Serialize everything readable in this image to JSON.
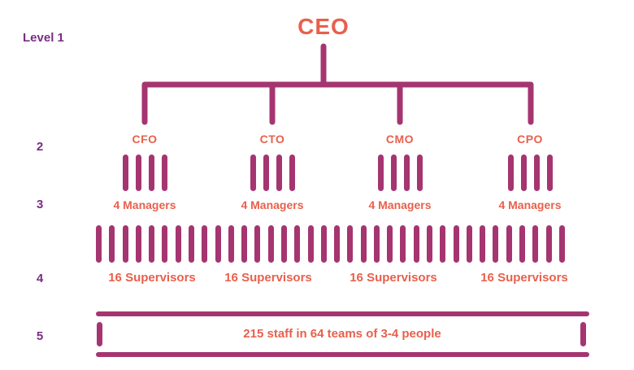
{
  "palette": {
    "line": "#A53570",
    "level_label": "#7B2C83",
    "node_text": "#E8604C",
    "background": "#ffffff"
  },
  "level_axis": {
    "items": [
      {
        "label": "Level 1"
      },
      {
        "label": "2"
      },
      {
        "label": "3"
      },
      {
        "label": "4"
      },
      {
        "label": "5"
      }
    ]
  },
  "org": {
    "root": {
      "title": "CEO"
    },
    "executives": [
      {
        "title": "CFO",
        "managers_label": "4 Managers",
        "supervisors_label": "16 Supervisors"
      },
      {
        "title": "CTO",
        "managers_label": "4 Managers",
        "supervisors_label": "16 Supervisors"
      },
      {
        "title": "CMO",
        "managers_label": "4 Managers",
        "supervisors_label": "16 Supervisors"
      },
      {
        "title": "CPO",
        "managers_label": "4 Managers",
        "supervisors_label": "16 Supervisors"
      }
    ],
    "manager_ticks_per_executive": 4,
    "supervisor_row_tick_count": 36,
    "staff_band": {
      "label": "215 staff in 64 teams of 3-4 people"
    }
  },
  "chart_data": {
    "type": "table",
    "title": "Organization hierarchy by level",
    "categories": [
      "Level 1",
      "Level 2",
      "Level 3",
      "Level 4",
      "Level 5"
    ],
    "rows": [
      {
        "level": "Level 1",
        "content": "CEO"
      },
      {
        "level": "2",
        "content": "CFO, CTO, CMO, CPO"
      },
      {
        "level": "3",
        "content": "4 Managers under each executive"
      },
      {
        "level": "4",
        "content": "16 Supervisors under each executive"
      },
      {
        "level": "5",
        "content": "215 staff in 64 teams of 3-4 people"
      }
    ]
  }
}
